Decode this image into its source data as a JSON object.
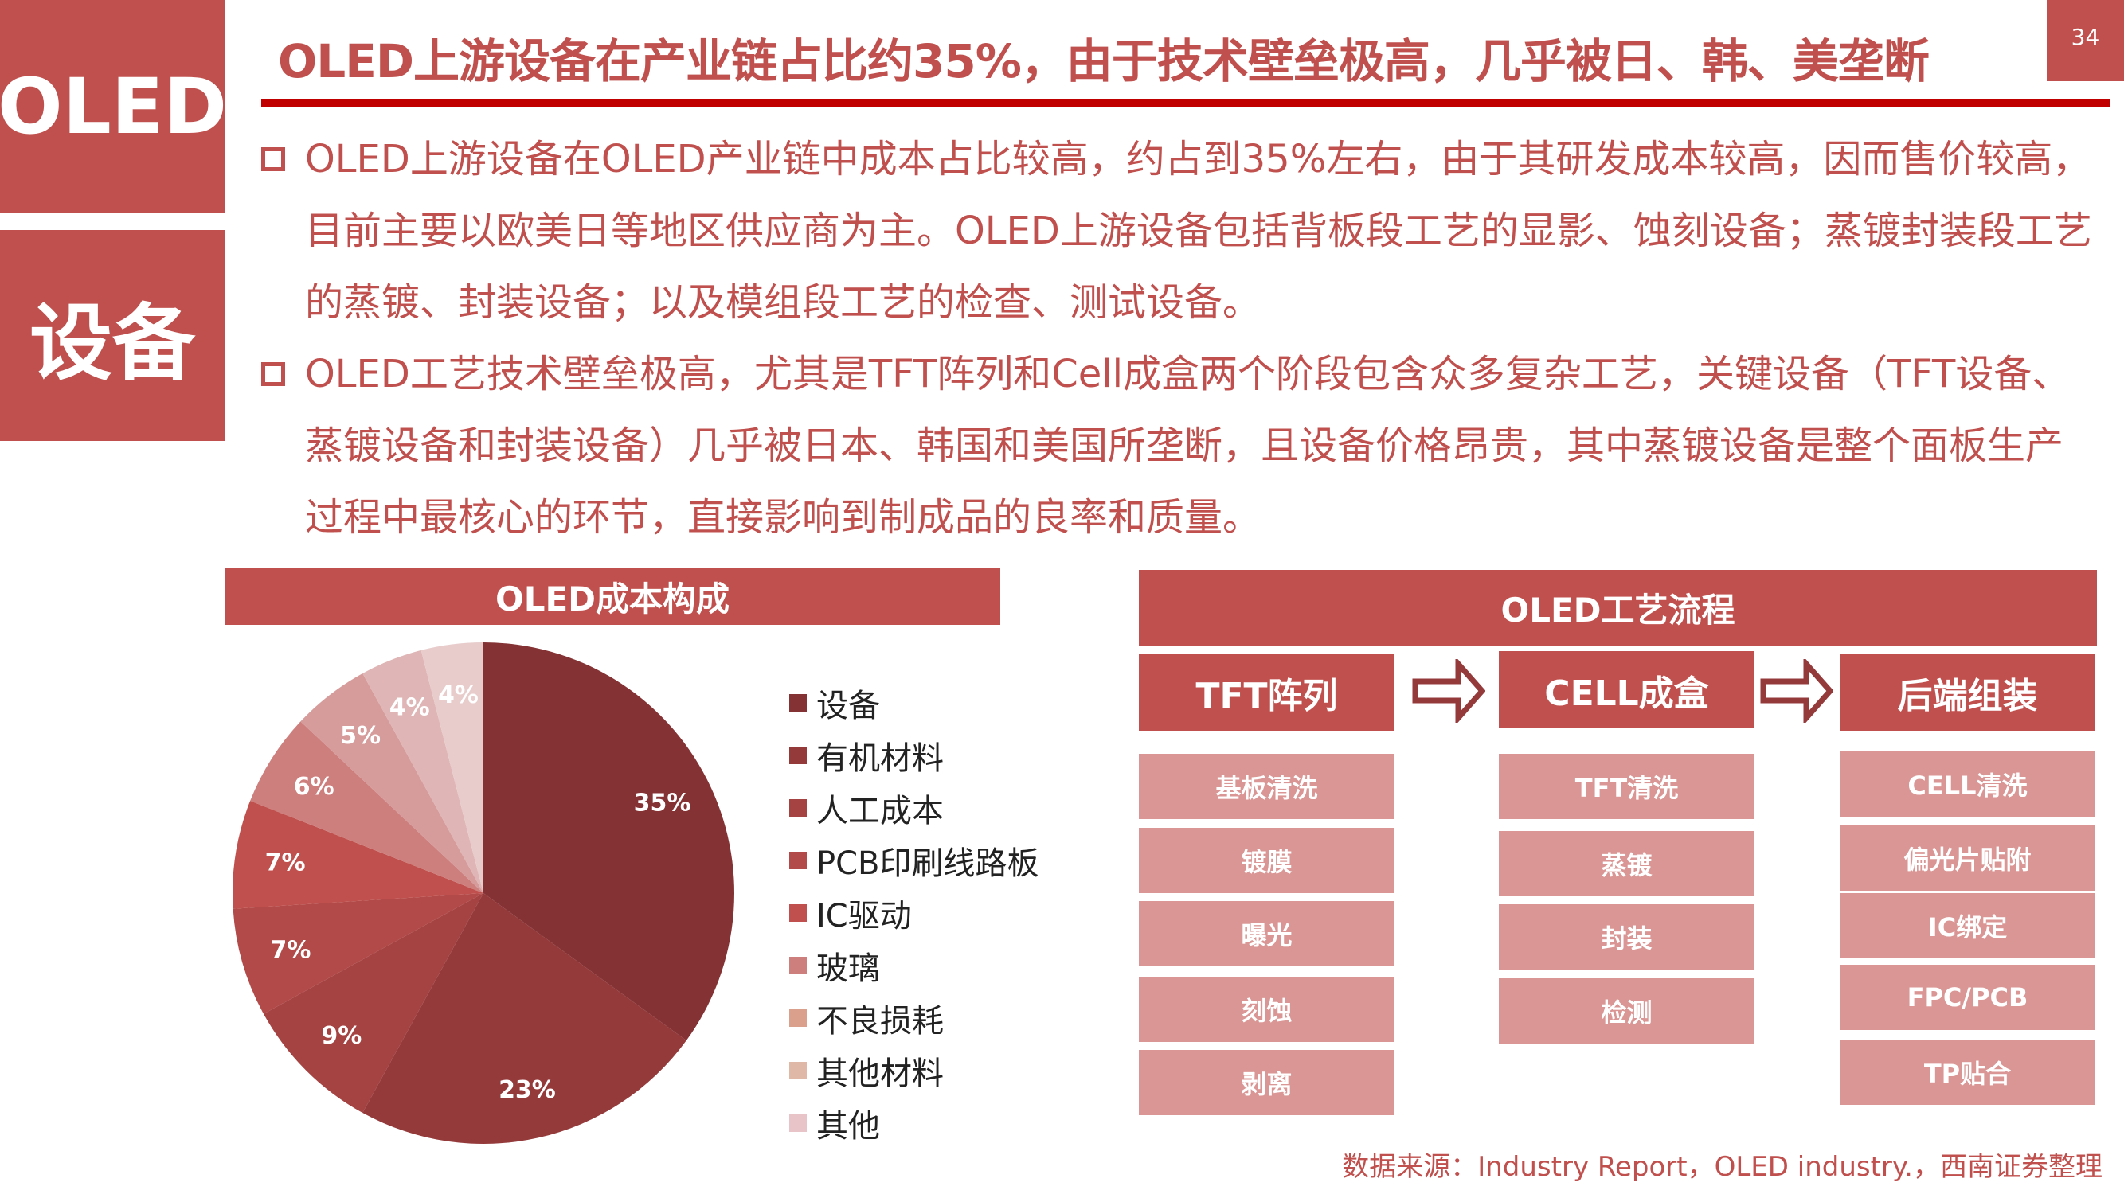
{
  "side": {
    "top": "OLED",
    "bottom": "设备"
  },
  "title": "OLED上游设备在产业链占比约35%，由于技术壁垒极高，几乎被日、韩、美垄断",
  "page_number": "34",
  "bullets": [
    "OLED上游设备在OLED产业链中成本占比较高，约占到35%左右，由于其研发成本较高，因而售价较高，目前主要以欧美日等地区供应商为主。OLED上游设备包括背板段工艺的显影、蚀刻设备；蒸镀封装段工艺的蒸镀、封装设备；以及模组段工艺的检查、测试设备。",
    "OLED工艺技术壁垒极高，尤其是TFT阵列和Cell成盒两个阶段包含众多复杂工艺，关键设备（TFT设备、蒸镀设备和封装设备）几乎被日本、韩国和美国所垄断，且设备价格昂贵，其中蒸镀设备是整个面板生产过程中最核心的环节，直接影响到制成品的良率和质量。"
  ],
  "chart_data": {
    "type": "pie",
    "title": "OLED成本构成",
    "categories": [
      "设备",
      "有机材料",
      "人工成本",
      "PCB印刷线路板",
      "IC驱动",
      "玻璃",
      "不良损耗",
      "其他材料",
      "其他"
    ],
    "values": [
      35,
      23,
      9,
      7,
      7,
      6,
      5,
      4,
      4
    ],
    "labels": [
      "35%",
      "23%",
      "9%",
      "7%",
      "7%",
      "6%",
      "5%",
      "4%",
      "4%"
    ],
    "colors": [
      "#843234",
      "#953a3b",
      "#a54242",
      "#b14a48",
      "#c0504d",
      "#cd7f7d",
      "#d69c9b",
      "#dfb5b5",
      "#e8cccc"
    ],
    "legend_colors": [
      "#843234",
      "#953a3b",
      "#a54242",
      "#b14a48",
      "#c0504d",
      "#cd7f7d",
      "#daa08c",
      "#e0b8a8",
      "#e8c4c8"
    ],
    "legend": "right",
    "start": "12 o'clock, clockwise"
  },
  "flow": {
    "title": "OLED工艺流程",
    "stages": [
      {
        "name": "TFT阵列",
        "steps": [
          "基板清洗",
          "镀膜",
          "曝光",
          "刻蚀",
          "剥离"
        ]
      },
      {
        "name": "CELL成盒",
        "steps": [
          "TFT清洗",
          "蒸镀",
          "封装",
          "检测"
        ]
      },
      {
        "name": "后端组装",
        "steps": [
          "CELL清洗",
          "偏光片贴附",
          "IC绑定",
          "FPC/PCB",
          "TP贴合"
        ]
      }
    ],
    "arrow_icon": "right-arrow-outline"
  },
  "source": "数据来源：Industry Report，OLED industry.，西南证券整理"
}
